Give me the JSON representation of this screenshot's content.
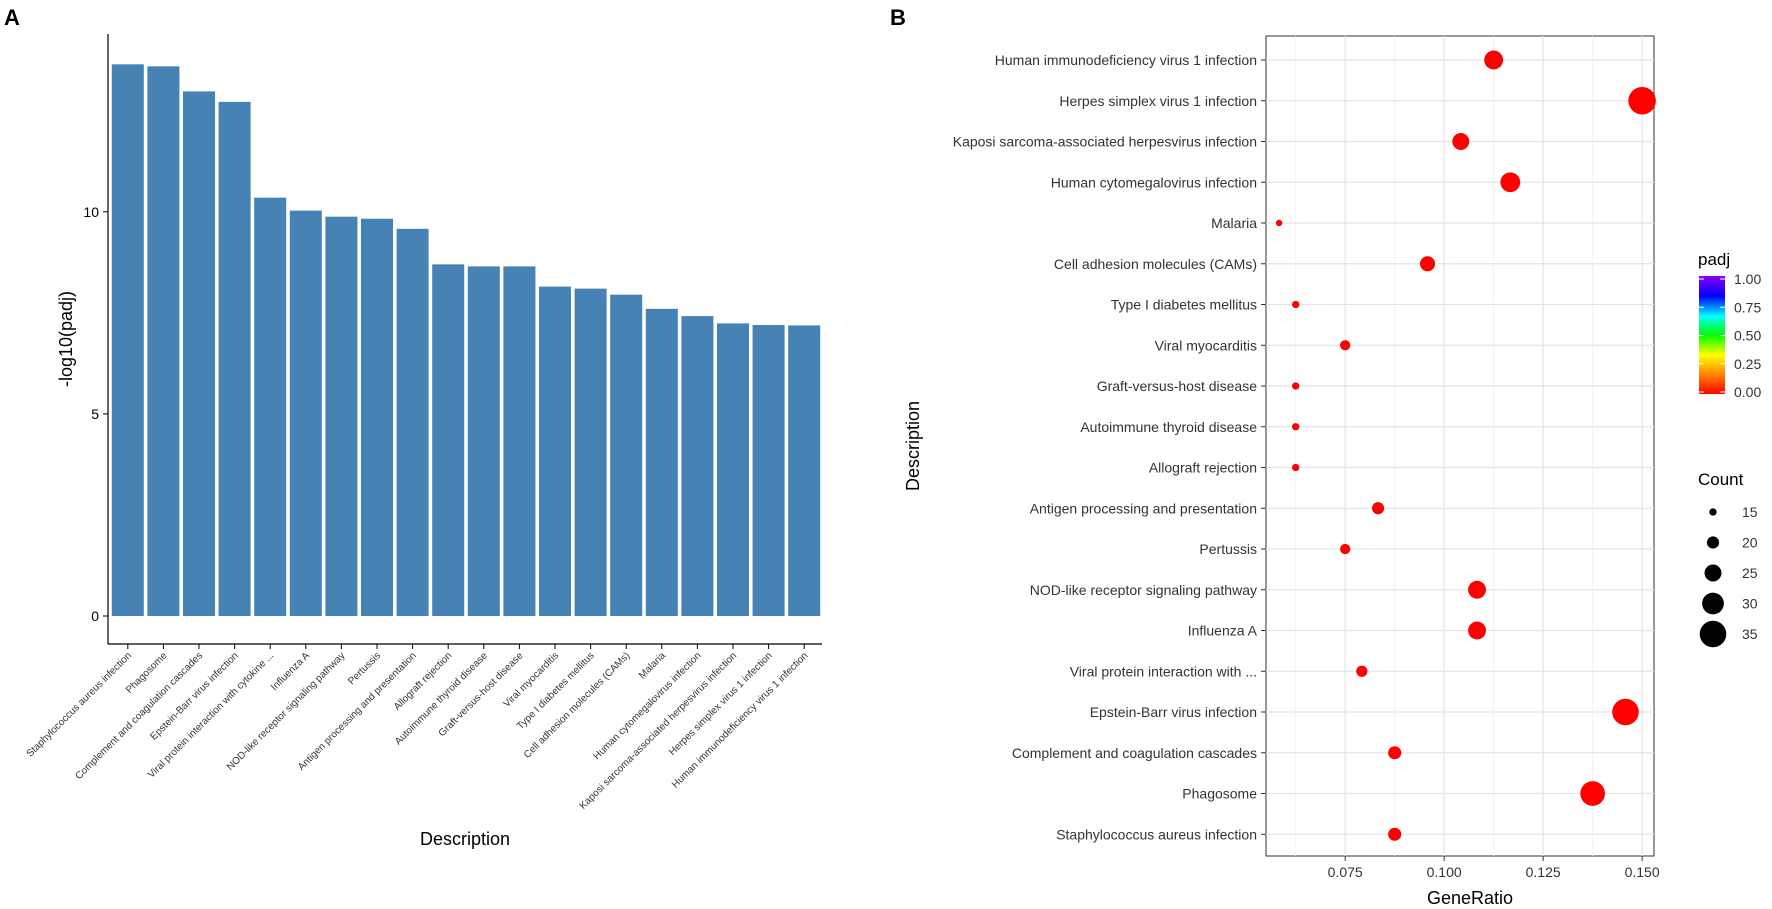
{
  "panels": {
    "a_label": "A",
    "b_label": "B"
  },
  "chart_data": [
    {
      "type": "bar",
      "panel": "A",
      "title": "",
      "xlabel": "Description",
      "ylabel": "-log10(padj)",
      "ylim": [
        0,
        14.4
      ],
      "yticks": [
        0,
        5,
        10
      ],
      "bar_color": "#4682b4",
      "categories": [
        "Staphylococcus aureus infection",
        "Phagosome",
        "Complement and coagulation cascades",
        "Epstein-Barr virus infection",
        "Viral protein interaction with cytokine ...",
        "Influenza A",
        "NOD-like receptor signaling pathway",
        "Pertussis",
        "Antigen processing and presentation",
        "Allograft rejection",
        "Autoimmune thyroid disease",
        "Graft-versus-host disease",
        "Viral myocarditis",
        "Type I diabetes mellitus",
        "Cell adhesion molecules (CAMs)",
        "Malaria",
        "Human cytomegalovirus infection",
        "Kaposi sarcoma-associated herpesvirus infection",
        "Herpes simplex virus 1 infection",
        "Human immunodeficiency virus 1 infection"
      ],
      "values": [
        13.65,
        13.6,
        12.98,
        12.72,
        10.35,
        10.03,
        9.88,
        9.83,
        9.58,
        8.7,
        8.65,
        8.65,
        8.15,
        8.1,
        7.95,
        7.6,
        7.42,
        7.24,
        7.2,
        7.19
      ]
    },
    {
      "type": "scatter",
      "panel": "B",
      "title": "",
      "xlabel": "GeneRatio",
      "ylabel": "Description",
      "xlim": [
        0.055,
        0.153
      ],
      "xticks": [
        0.075,
        0.1,
        0.125,
        0.15
      ],
      "xtick_labels": [
        "0.075",
        "0.100",
        "0.125",
        "0.150"
      ],
      "point_color": "#ff0000",
      "categories": [
        "Human immunodeficiency virus 1 infection",
        "Herpes simplex virus 1 infection",
        "Kaposi sarcoma-associated herpesvirus infection",
        "Human cytomegalovirus infection",
        "Malaria",
        "Cell adhesion molecules (CAMs)",
        "Type I diabetes mellitus",
        "Viral myocarditis",
        "Graft-versus-host disease",
        "Autoimmune thyroid disease",
        "Allograft rejection",
        "Antigen processing and presentation",
        "Pertussis",
        "NOD-like receptor signaling pathway",
        "Influenza A",
        "Viral protein interaction with ...",
        "Epstein-Barr virus infection",
        "Complement and coagulation cascades",
        "Phagosome",
        "Staphylococcus aureus infection"
      ],
      "x": [
        0.1125,
        0.15,
        0.1042,
        0.1167,
        0.0583,
        0.0958,
        0.0625,
        0.075,
        0.0625,
        0.0625,
        0.0625,
        0.0833,
        0.075,
        0.1083,
        0.1083,
        0.0792,
        0.1458,
        0.0875,
        0.1375,
        0.0875
      ],
      "count": [
        27,
        36,
        25,
        28,
        14,
        23,
        15,
        18,
        15,
        15,
        15,
        20,
        18,
        26,
        26,
        19,
        35,
        21,
        33,
        21
      ],
      "padj": [
        0,
        0,
        0,
        0,
        0,
        0,
        0,
        0,
        0,
        0,
        0,
        0,
        0,
        0,
        0,
        0,
        0,
        0,
        0,
        0
      ],
      "legend_color": {
        "title": "padj",
        "ticks": [
          "1.00",
          "0.75",
          "0.50",
          "0.25",
          "0.00"
        ],
        "colors": [
          "#8b00ff",
          "#0000ff",
          "#00ffff",
          "#00ff00",
          "#ffff00",
          "#ff8000",
          "#ff0000"
        ]
      },
      "legend_size": {
        "title": "Count",
        "values": [
          "15",
          "20",
          "25",
          "30",
          "35"
        ]
      }
    }
  ]
}
